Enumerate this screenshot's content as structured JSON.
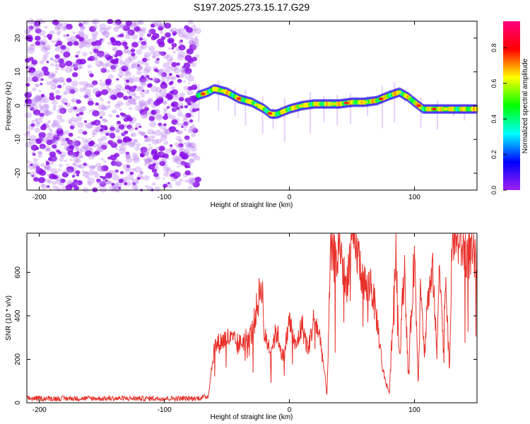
{
  "title": "S197.2025.273.15.17.G29",
  "chart_data": [
    {
      "type": "heatmap",
      "xlabel": "Height of straight line (km)",
      "ylabel": "Frequency (Hz)",
      "xlim": [
        -210,
        150
      ],
      "ylim": [
        -25,
        25
      ],
      "xticks": [
        -200,
        -100,
        0,
        100
      ],
      "yticks": [
        20,
        10,
        0,
        -10,
        -20
      ],
      "noise_region_x": [
        -210,
        -73
      ],
      "ridge": {
        "x": [
          -73,
          -65,
          -60,
          -50,
          -40,
          -30,
          -20,
          -15,
          -10,
          0,
          10,
          20,
          30,
          40,
          50,
          60,
          70,
          80,
          88,
          95,
          100,
          107,
          115,
          125,
          135,
          150
        ],
        "frequency": [
          3,
          4,
          5,
          4,
          2,
          1,
          -1,
          -2.5,
          -2.5,
          -1,
          0,
          0.5,
          0.5,
          0.5,
          1,
          1,
          1.5,
          3,
          4,
          2.5,
          1,
          -1,
          -1,
          -1,
          -1,
          -1
        ]
      },
      "colorbar": {
        "label": "Normalized spectral amplitude",
        "range": [
          0,
          0.95
        ],
        "ticks": [
          "0.0",
          "0.2",
          "0.4",
          "0.6",
          "0.8"
        ],
        "colors": [
          "#a020f0",
          "#0000ff",
          "#00ffff",
          "#00ff00",
          "#ffff00",
          "#ff0000",
          "#ff0080"
        ]
      }
    },
    {
      "type": "line",
      "xlabel": "Height of straight line (km)",
      "ylabel": "SNR (10 * v/v)",
      "xlim": [
        -210,
        150
      ],
      "ylim": [
        0,
        780
      ],
      "xticks": [
        -200,
        -100,
        0,
        100
      ],
      "yticks": [
        0,
        200,
        400,
        600
      ],
      "series": [
        {
          "name": "SNR",
          "color": "#e8312a",
          "x": [
            -210,
            -200,
            -150,
            -100,
            -75,
            -65,
            -60,
            -50,
            -40,
            -30,
            -22,
            -20,
            -15,
            -10,
            -5,
            0,
            5,
            10,
            15,
            20,
            25,
            30,
            33,
            38,
            40,
            45,
            50,
            55,
            58,
            62,
            65,
            70,
            75,
            80,
            85,
            88,
            92,
            95,
            100,
            103,
            105,
            108,
            110,
            115,
            118,
            120,
            123,
            125,
            128,
            130,
            135,
            140,
            145,
            150
          ],
          "y": [
            20,
            20,
            20,
            20,
            20,
            30,
            260,
            300,
            270,
            320,
            560,
            300,
            250,
            330,
            200,
            380,
            250,
            360,
            240,
            400,
            280,
            40,
            700,
            640,
            760,
            520,
            760,
            680,
            590,
            520,
            560,
            380,
            140,
            40,
            700,
            200,
            640,
            120,
            700,
            80,
            600,
            200,
            450,
            600,
            200,
            700,
            250,
            600,
            120,
            780,
            750,
            700,
            680,
            640
          ]
        }
      ]
    }
  ]
}
